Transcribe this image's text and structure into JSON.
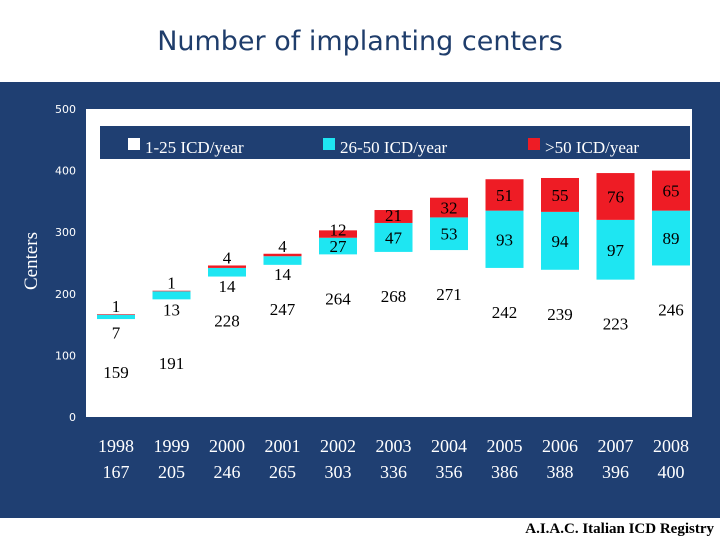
{
  "slide": {
    "title": "Number of implanting centers",
    "source": "A.I.A.C. Italian ICD Registry"
  },
  "colors": {
    "panel": "#1f3f72",
    "plot_bg": "#ffffff",
    "tier1": "#ffffff",
    "tier2": "#1ee6f2",
    "tier3": "#ee1c25",
    "legend_bg": "#1f3f72",
    "text": "#000000"
  },
  "chart_data": {
    "type": "bar",
    "stacked": true,
    "title": "",
    "xlabel": "",
    "ylabel": "Centers",
    "ylim": [
      0,
      500
    ],
    "yticks": [
      0,
      100,
      200,
      300,
      400,
      500
    ],
    "grid": false,
    "legend_position": "top",
    "categories": [
      "1998",
      "1999",
      "2000",
      "2001",
      "2002",
      "2003",
      "2004",
      "2005",
      "2006",
      "2007",
      "2008"
    ],
    "totals": [
      "167",
      "205",
      "246",
      "265",
      "303",
      "336",
      "356",
      "386",
      "388",
      "396",
      "400"
    ],
    "series": [
      {
        "name": "1-25 ICD/year",
        "values": [
          159,
          191,
          228,
          247,
          264,
          268,
          271,
          242,
          239,
          223,
          246
        ]
      },
      {
        "name": "26-50 ICD/year",
        "values": [
          7,
          13,
          14,
          14,
          27,
          47,
          53,
          93,
          94,
          97,
          89
        ]
      },
      {
        "name": ">50 ICD/year",
        "values": [
          1,
          1,
          4,
          4,
          12,
          21,
          32,
          51,
          55,
          76,
          65
        ]
      }
    ]
  }
}
